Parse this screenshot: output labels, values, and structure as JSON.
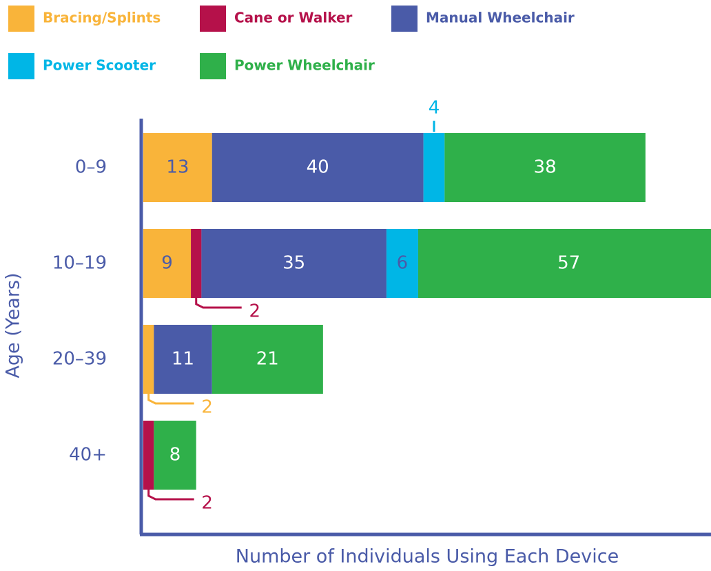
{
  "chart_data": {
    "type": "bar",
    "orientation": "horizontal",
    "stacked": true,
    "x_label": "Number of Individuals Using Each Device",
    "y_label": "Age (Years)",
    "categories": [
      "0–9",
      "10–19",
      "20–39",
      "40+"
    ],
    "xlim": [
      0,
      107.4
    ],
    "series": [
      {
        "name": "Bracing/Splints",
        "color": "#f9b43a",
        "values": [
          13,
          9,
          2,
          0
        ]
      },
      {
        "name": "Cane or Walker",
        "color": "#b5114a",
        "values": [
          0,
          2,
          0,
          2
        ]
      },
      {
        "name": "Manual Wheelchair",
        "color": "#4a5ba8",
        "values": [
          40,
          35,
          11,
          0
        ]
      },
      {
        "name": "Power Scooter",
        "color": "#00b6e6",
        "values": [
          4,
          6,
          0,
          0
        ]
      },
      {
        "name": "Power Wheelchair",
        "color": "#2fb04a",
        "values": [
          38,
          57,
          21,
          8
        ]
      }
    ]
  }
}
